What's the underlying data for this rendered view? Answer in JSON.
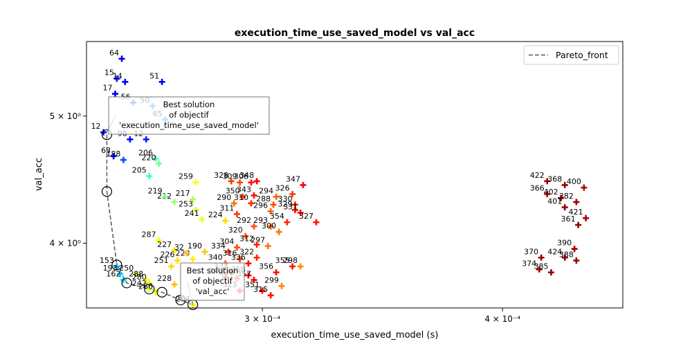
{
  "chart_data": {
    "type": "scatter",
    "title": "execution_time_use_saved_model vs val_acc",
    "xlabel": "execution_time_use_saved_model (s)",
    "ylabel": "val_acc",
    "xscale": "log",
    "yscale": "log",
    "xlim": [
      0.000243,
      0.000462
    ],
    "ylim": [
      3.57,
      5.7
    ],
    "x_ticks": [
      {
        "value": 0.0003,
        "label": "3 × 10⁻⁴"
      },
      {
        "value": 0.0004,
        "label": "4 × 10⁻⁴"
      }
    ],
    "y_ticks": [
      {
        "value": 4.0,
        "label": "4 × 10⁰"
      },
      {
        "value": 5.0,
        "label": "5 × 10⁰"
      }
    ],
    "grid": false,
    "legend": {
      "position": "top-right",
      "entries": [
        "Pareto_front"
      ]
    },
    "colormap": "jet",
    "series": [
      {
        "name": "Pareto_front",
        "style": "dashed",
        "color": "#555555",
        "x": [
          0.000249,
          0.000249,
          0.000252,
          0.000255,
          0.000262,
          0.000266,
          0.000272,
          0.000276
        ],
        "y": [
          4.84,
          4.38,
          3.85,
          3.73,
          3.69,
          3.67,
          3.62,
          3.59
        ]
      }
    ],
    "points": [
      {
        "label": "64",
        "x": 0.0002535,
        "y": 5.53,
        "c": 0.1
      },
      {
        "label": "15",
        "x": 0.000252,
        "y": 5.34,
        "c": 0.11
      },
      {
        "label": "14",
        "x": 0.0002545,
        "y": 5.31,
        "c": 0.12
      },
      {
        "label": "51",
        "x": 0.000266,
        "y": 5.31,
        "c": 0.1
      },
      {
        "label": "17",
        "x": 0.0002515,
        "y": 5.2,
        "c": 0.12
      },
      {
        "label": "56",
        "x": 0.000257,
        "y": 5.12,
        "c": 0.2
      },
      {
        "label": "50",
        "x": 0.000263,
        "y": 5.09,
        "c": 0.25
      },
      {
        "label": "65",
        "x": 0.000267,
        "y": 4.97,
        "c": 0.26
      },
      {
        "label": "12",
        "x": 0.000248,
        "y": 4.86,
        "c": 0.1
      },
      {
        "label": "98",
        "x": 0.000256,
        "y": 4.8,
        "c": 0.13
      },
      {
        "label": "12",
        "x": 0.000261,
        "y": 4.8,
        "c": 0.15
      },
      {
        "label": "63",
        "x": 0.000251,
        "y": 4.66,
        "c": 0.13
      },
      {
        "label": "188",
        "x": 0.000254,
        "y": 4.63,
        "c": 0.2
      },
      {
        "label": "206",
        "x": 0.000264,
        "y": 4.64,
        "c": 0.45
      },
      {
        "label": "220",
        "x": 0.000265,
        "y": 4.6,
        "c": 0.48
      },
      {
        "label": "205",
        "x": 0.000262,
        "y": 4.5,
        "c": 0.42
      },
      {
        "label": "212",
        "x": 0.00027,
        "y": 4.3,
        "c": 0.52
      },
      {
        "label": "217",
        "x": 0.000276,
        "y": 4.32,
        "c": 0.55
      },
      {
        "label": "259",
        "x": 0.000277,
        "y": 4.45,
        "c": 0.62
      },
      {
        "label": "253",
        "x": 0.000277,
        "y": 4.24,
        "c": 0.58
      },
      {
        "label": "241",
        "x": 0.000279,
        "y": 4.17,
        "c": 0.6
      },
      {
        "label": "219",
        "x": 0.000267,
        "y": 4.34,
        "c": 0.5
      },
      {
        "label": "287",
        "x": 0.000265,
        "y": 4.02,
        "c": 0.62
      },
      {
        "label": "227",
        "x": 0.00027,
        "y": 3.95,
        "c": 0.65
      },
      {
        "label": "226",
        "x": 0.000271,
        "y": 3.88,
        "c": 0.66
      },
      {
        "label": "229",
        "x": 0.000276,
        "y": 3.89,
        "c": 0.64
      },
      {
        "label": "32",
        "x": 0.000274,
        "y": 3.93,
        "c": 0.68
      },
      {
        "label": "190",
        "x": 0.00028,
        "y": 3.94,
        "c": 0.68
      },
      {
        "label": "251",
        "x": 0.000269,
        "y": 3.84,
        "c": 0.66
      },
      {
        "label": "228",
        "x": 0.00027,
        "y": 3.72,
        "c": 0.69
      },
      {
        "label": "328",
        "x": 0.000289,
        "y": 4.46,
        "c": 0.82
      },
      {
        "label": "309",
        "x": 0.000292,
        "y": 4.45,
        "c": 0.8
      },
      {
        "label": "306",
        "x": 0.000296,
        "y": 4.45,
        "c": 0.85
      },
      {
        "label": "348",
        "x": 0.000298,
        "y": 4.46,
        "c": 0.88
      },
      {
        "label": "347",
        "x": 0.000315,
        "y": 4.43,
        "c": 0.88
      },
      {
        "label": "326",
        "x": 0.000311,
        "y": 4.36,
        "c": 0.82
      },
      {
        "label": "294",
        "x": 0.000305,
        "y": 4.34,
        "c": 0.78
      },
      {
        "label": "350",
        "x": 0.000293,
        "y": 4.34,
        "c": 0.82
      },
      {
        "label": "343",
        "x": 0.000297,
        "y": 4.35,
        "c": 0.86
      },
      {
        "label": "290",
        "x": 0.00029,
        "y": 4.29,
        "c": 0.76
      },
      {
        "label": "310",
        "x": 0.000296,
        "y": 4.29,
        "c": 0.84
      },
      {
        "label": "288",
        "x": 0.000304,
        "y": 4.28,
        "c": 0.8
      },
      {
        "label": "330",
        "x": 0.000312,
        "y": 4.28,
        "c": 0.84
      },
      {
        "label": "329",
        "x": 0.000312,
        "y": 4.24,
        "c": 0.86
      },
      {
        "label": "331",
        "x": 0.000314,
        "y": 4.22,
        "c": 0.88
      },
      {
        "label": "296",
        "x": 0.000303,
        "y": 4.23,
        "c": 0.78
      },
      {
        "label": "311",
        "x": 0.000291,
        "y": 4.21,
        "c": 0.82
      },
      {
        "label": "224",
        "x": 0.000287,
        "y": 4.16,
        "c": 0.66
      },
      {
        "label": "354",
        "x": 0.000309,
        "y": 4.15,
        "c": 0.84
      },
      {
        "label": "327",
        "x": 0.00032,
        "y": 4.15,
        "c": 0.86
      },
      {
        "label": "293",
        "x": 0.000303,
        "y": 4.12,
        "c": 0.78
      },
      {
        "label": "292",
        "x": 0.000297,
        "y": 4.12,
        "c": 0.8
      },
      {
        "label": "300",
        "x": 0.000306,
        "y": 4.08,
        "c": 0.76
      },
      {
        "label": "320",
        "x": 0.000294,
        "y": 4.05,
        "c": 0.8
      },
      {
        "label": "297",
        "x": 0.000302,
        "y": 3.98,
        "c": 0.76
      },
      {
        "label": "312",
        "x": 0.000298,
        "y": 3.99,
        "c": 0.84
      },
      {
        "label": "334",
        "x": 0.000288,
        "y": 3.94,
        "c": 0.82
      },
      {
        "label": "304",
        "x": 0.000291,
        "y": 3.97,
        "c": 0.8
      },
      {
        "label": "322",
        "x": 0.000298,
        "y": 3.9,
        "c": 0.84
      },
      {
        "label": "316",
        "x": 0.000292,
        "y": 3.89,
        "c": 0.82
      },
      {
        "label": "336",
        "x": 0.000295,
        "y": 3.86,
        "c": 0.86
      },
      {
        "label": "340",
        "x": 0.000287,
        "y": 3.86,
        "c": 0.8
      },
      {
        "label": "355",
        "x": 0.000311,
        "y": 3.84,
        "c": 0.86
      },
      {
        "label": "298",
        "x": 0.000314,
        "y": 3.84,
        "c": 0.74
      },
      {
        "label": "356",
        "x": 0.000305,
        "y": 3.8,
        "c": 0.86
      },
      {
        "label": "337",
        "x": 0.000289,
        "y": 3.8,
        "c": 0.84
      },
      {
        "label": "358",
        "x": 0.000295,
        "y": 3.78,
        "c": 0.86
      },
      {
        "label": "349",
        "x": 0.000287,
        "y": 3.77,
        "c": 0.86
      },
      {
        "label": "339",
        "x": 0.000291,
        "y": 3.76,
        "c": 0.82
      },
      {
        "label": "357",
        "x": 0.000297,
        "y": 3.75,
        "c": 0.88
      },
      {
        "label": "299",
        "x": 0.000307,
        "y": 3.71,
        "c": 0.74
      },
      {
        "label": "323",
        "x": 0.000292,
        "y": 3.68,
        "c": 0.86
      },
      {
        "label": "351",
        "x": 0.0003,
        "y": 3.68,
        "c": 0.88
      },
      {
        "label": "315",
        "x": 0.000303,
        "y": 3.65,
        "c": 0.86
      },
      {
        "label": "422",
        "x": 0.000422,
        "y": 4.46,
        "c": 0.96
      },
      {
        "label": "368",
        "x": 0.000431,
        "y": 4.43,
        "c": 0.98
      },
      {
        "label": "400",
        "x": 0.000441,
        "y": 4.41,
        "c": 0.96
      },
      {
        "label": "366",
        "x": 0.000422,
        "y": 4.36,
        "c": 0.97
      },
      {
        "label": "402",
        "x": 0.000429,
        "y": 4.33,
        "c": 0.98
      },
      {
        "label": "382",
        "x": 0.000437,
        "y": 4.3,
        "c": 0.97
      },
      {
        "label": "401",
        "x": 0.000431,
        "y": 4.26,
        "c": 0.98
      },
      {
        "label": "421",
        "x": 0.000442,
        "y": 4.18,
        "c": 0.96
      },
      {
        "label": "361",
        "x": 0.000438,
        "y": 4.13,
        "c": 0.98
      },
      {
        "label": "390",
        "x": 0.000436,
        "y": 3.96,
        "c": 0.97
      },
      {
        "label": "424",
        "x": 0.000431,
        "y": 3.9,
        "c": 0.98
      },
      {
        "label": "388",
        "x": 0.000437,
        "y": 3.88,
        "c": 0.97
      },
      {
        "label": "370",
        "x": 0.000419,
        "y": 3.9,
        "c": 0.98
      },
      {
        "label": "374",
        "x": 0.000418,
        "y": 3.82,
        "c": 0.97
      },
      {
        "label": "385",
        "x": 0.000424,
        "y": 3.8,
        "c": 0.98
      },
      {
        "label": "153",
        "x": 0.000252,
        "y": 3.84,
        "c": 0.3
      },
      {
        "label": "193",
        "x": 0.000253,
        "y": 3.79,
        "c": 0.32
      },
      {
        "label": "162",
        "x": 0.000254,
        "y": 3.75,
        "c": 0.34
      },
      {
        "label": "250",
        "x": 0.000258,
        "y": 3.79,
        "c": 0.58
      },
      {
        "label": "288",
        "x": 0.000261,
        "y": 3.75,
        "c": 0.62
      },
      {
        "label": "280",
        "x": 0.000262,
        "y": 3.73,
        "c": 0.6
      },
      {
        "label": "242",
        "x": 0.000262,
        "y": 3.69,
        "c": 0.58
      },
      {
        "label": "266",
        "x": 0.000264,
        "y": 3.67,
        "c": 0.62
      },
      {
        "label": "264",
        "x": 0.000276,
        "y": 3.59,
        "c": 0.64
      }
    ],
    "annotations": [
      {
        "text": "Best solution\nof objectif\n'execution_time_use_saved_model'",
        "x": 0.000249,
        "y": 4.86
      },
      {
        "text": "Best solution\nof objectif\n'val_acc'",
        "x": 0.000276,
        "y": 3.59
      }
    ]
  }
}
